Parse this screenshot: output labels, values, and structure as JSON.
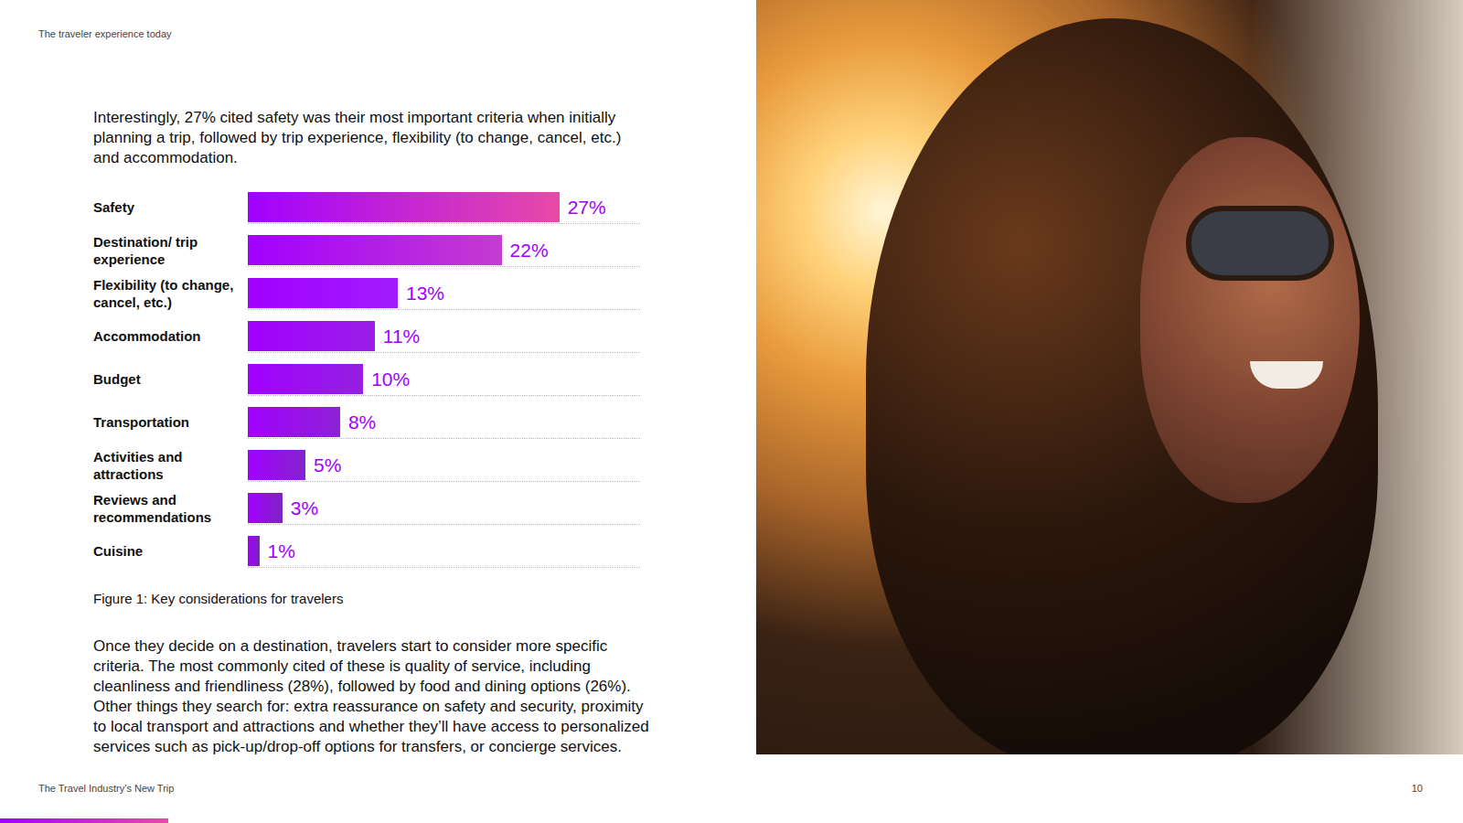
{
  "header": "The traveler experience today",
  "intro": "Interestingly, 27% cited safety was their most important criteria when initially planning a trip, followed by trip experience, flexibility (to change, cancel, etc.) and accommodation.",
  "chart_data": {
    "type": "bar",
    "orientation": "horizontal",
    "title": "Figure 1: Key considerations for travelers",
    "categories": [
      "Safety",
      "Destination/ trip experience",
      "Flexibility (to change, cancel, etc.)",
      "Accommodation",
      "Budget",
      "Transportation",
      "Activities and attractions",
      "Reviews and recommendations",
      "Cuisine"
    ],
    "values": [
      27,
      22,
      13,
      11,
      10,
      8,
      5,
      3,
      1
    ],
    "value_labels": [
      "27%",
      "22%",
      "13%",
      "11%",
      "10%",
      "8%",
      "5%",
      "3%",
      "1%"
    ],
    "colors": [
      "#e84aa8",
      "#c53cd0",
      "#a11cff",
      "#9b1ee8",
      "#9520e0",
      "#8d22d6",
      "#8424cc",
      "#7d25c2",
      "#7626b8"
    ],
    "xlim": [
      0,
      34
    ],
    "data_labels": true,
    "tick_labels": false,
    "grid": true
  },
  "body": "Once they decide on a destination, travelers start to consider more specific criteria. The most commonly cited of these is quality of service, including cleanliness and friendliness (28%), followed by food and dining options (26%). Other things they search for: extra reassurance on safety and security, proximity to local transport and attractions and whether they’ll have access to personalized services such as pick-up/drop-off options for transfers, or concierge services.",
  "footer": "The Travel Industry’s New Trip",
  "page_number": "10"
}
